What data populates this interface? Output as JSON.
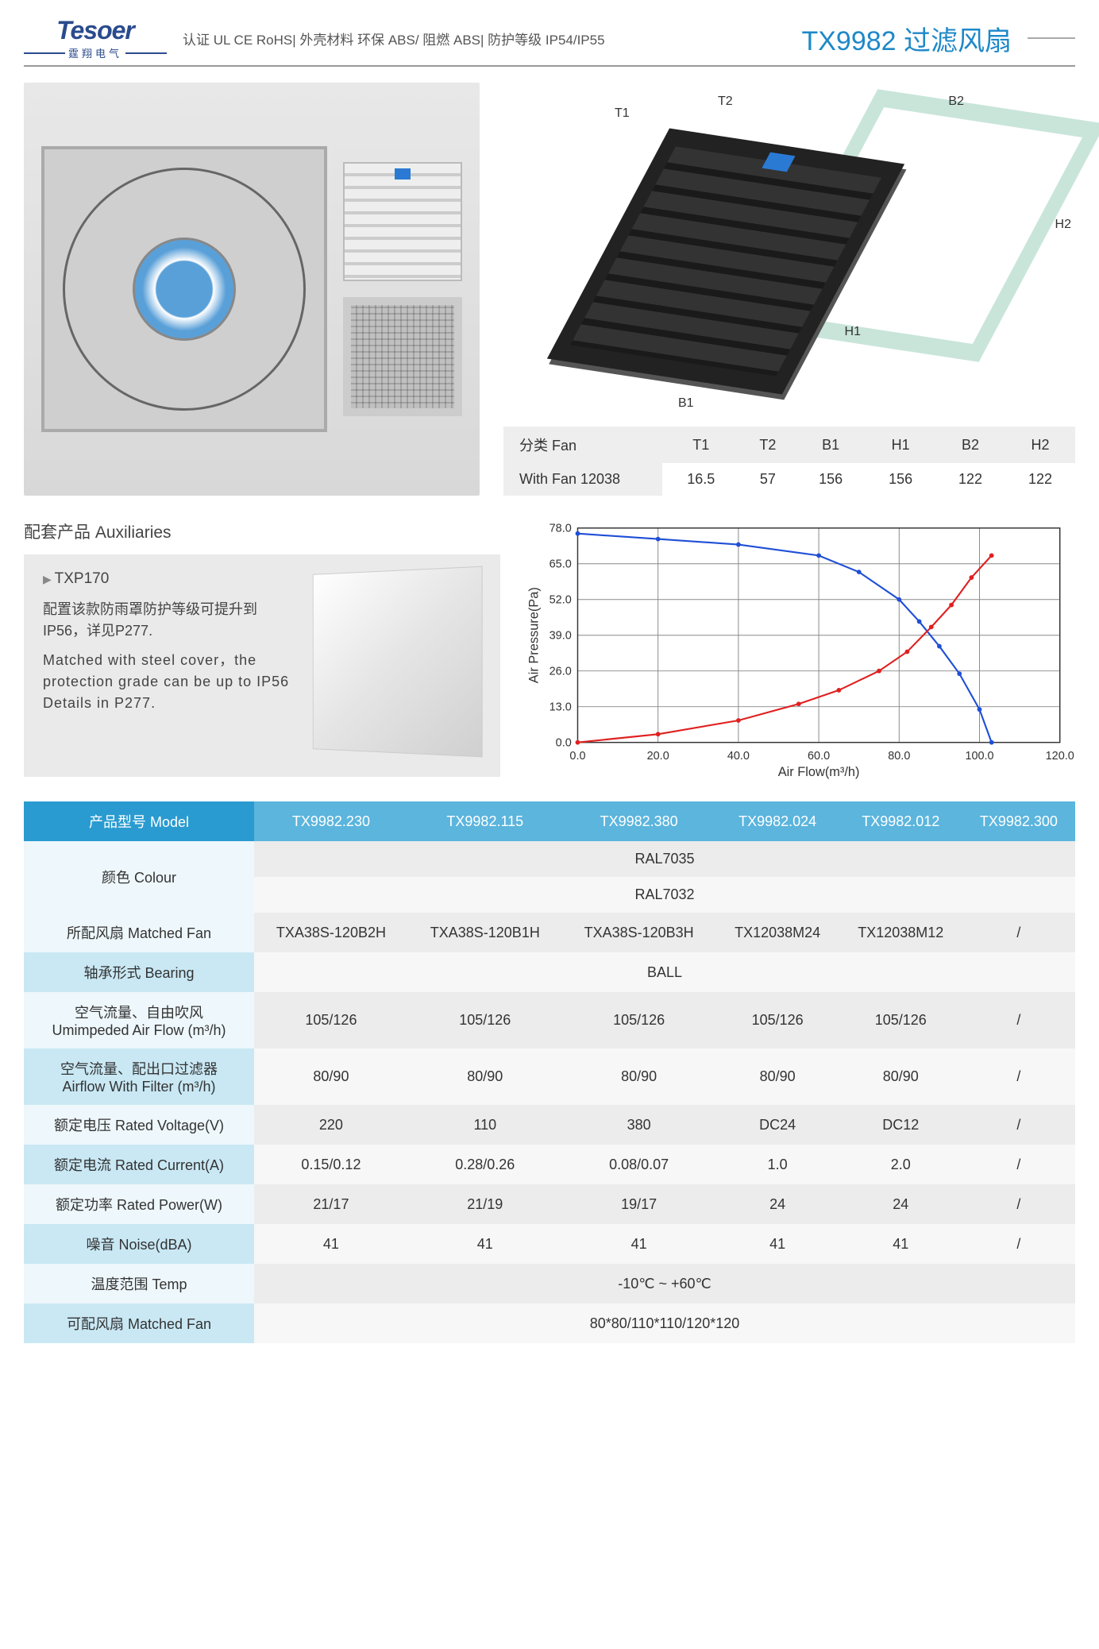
{
  "header": {
    "logo_main": "Tesoer",
    "logo_sub": "霆翔电气",
    "certs": "认证 UL CE RoHS| 外壳材料 环保 ABS/ 阻燃 ABS| 防护等级 IP54/IP55",
    "title": "TX9982 过滤风扇"
  },
  "diagram": {
    "labels": {
      "t1": "T1",
      "t2": "T2",
      "b1": "B1",
      "h1": "H1",
      "b2": "B2",
      "h2": "H2"
    }
  },
  "dim_table": {
    "head_label": "分类 Fan",
    "cols": [
      "T1",
      "T2",
      "B1",
      "H1",
      "B2",
      "H2"
    ],
    "row_label": "With Fan 12038",
    "vals": [
      "16.5",
      "57",
      "156",
      "156",
      "122",
      "122"
    ]
  },
  "aux": {
    "section": "配套产品 Auxiliaries",
    "model": "TXP170",
    "cn": "配置该款防雨罩防护等级可提升到 IP56，详见P277.",
    "en": "Matched with steel cover，the protection grade can be up to IP56 Details in P277."
  },
  "chart": {
    "xlabel": "Air Flow(m³/h)",
    "ylabel": "Air Pressure(Pa)",
    "xlim": [
      0,
      120
    ],
    "xtick": 20,
    "ylim": [
      0,
      78
    ],
    "yticks": [
      0.0,
      13.0,
      26.0,
      39.0,
      52.0,
      65.0,
      78.0
    ],
    "line_colors": {
      "pressure": "#1e4fd6",
      "other": "#e02020"
    },
    "grid_color": "#888",
    "blue_pts": [
      [
        0,
        76
      ],
      [
        20,
        74
      ],
      [
        40,
        72
      ],
      [
        60,
        68
      ],
      [
        70,
        62
      ],
      [
        80,
        52
      ],
      [
        85,
        44
      ],
      [
        90,
        35
      ],
      [
        95,
        25
      ],
      [
        100,
        12
      ],
      [
        103,
        0
      ]
    ],
    "red_pts": [
      [
        0,
        0
      ],
      [
        20,
        3
      ],
      [
        40,
        8
      ],
      [
        55,
        14
      ],
      [
        65,
        19
      ],
      [
        75,
        26
      ],
      [
        82,
        33
      ],
      [
        88,
        42
      ],
      [
        93,
        50
      ],
      [
        98,
        60
      ],
      [
        103,
        68
      ]
    ]
  },
  "spec": {
    "head": "产品型号 Model",
    "models": [
      "TX9982.230",
      "TX9982.115",
      "TX9982.380",
      "TX9982.024",
      "TX9982.012",
      "TX9982.300"
    ],
    "rows": [
      {
        "label": "颜色 Colour",
        "span": true,
        "vals": [
          "RAL7035",
          "RAL7032"
        ]
      },
      {
        "label": "所配风扇 Matched Fan",
        "vals": [
          "TXA38S-120B2H",
          "TXA38S-120B1H",
          "TXA38S-120B3H",
          "TX12038M24",
          "TX12038M12",
          "/"
        ]
      },
      {
        "label": "轴承形式 Bearing",
        "full": "BALL"
      },
      {
        "label": "空气流量、自由吹风\nUmimpeded Air Flow (m³/h)",
        "vals": [
          "105/126",
          "105/126",
          "105/126",
          "105/126",
          "105/126",
          "/"
        ]
      },
      {
        "label": "空气流量、配出口过滤器\nAirflow With Filter (m³/h)",
        "vals": [
          "80/90",
          "80/90",
          "80/90",
          "80/90",
          "80/90",
          "/"
        ]
      },
      {
        "label": "额定电压 Rated Voltage(V)",
        "vals": [
          "220",
          "110",
          "380",
          "DC24",
          "DC12",
          "/"
        ]
      },
      {
        "label": "额定电流 Rated Current(A)",
        "vals": [
          "0.15/0.12",
          "0.28/0.26",
          "0.08/0.07",
          "1.0",
          "2.0",
          "/"
        ]
      },
      {
        "label": "额定功率 Rated Power(W)",
        "vals": [
          "21/17",
          "21/19",
          "19/17",
          "24",
          "24",
          "/"
        ]
      },
      {
        "label": "噪音 Noise(dBA)",
        "vals": [
          "41",
          "41",
          "41",
          "41",
          "41",
          "/"
        ]
      },
      {
        "label": "温度范围 Temp",
        "full": "-10℃ ~ +60℃"
      },
      {
        "label": "可配风扇 Matched Fan",
        "full": "80*80/110*110/120*120"
      }
    ]
  }
}
